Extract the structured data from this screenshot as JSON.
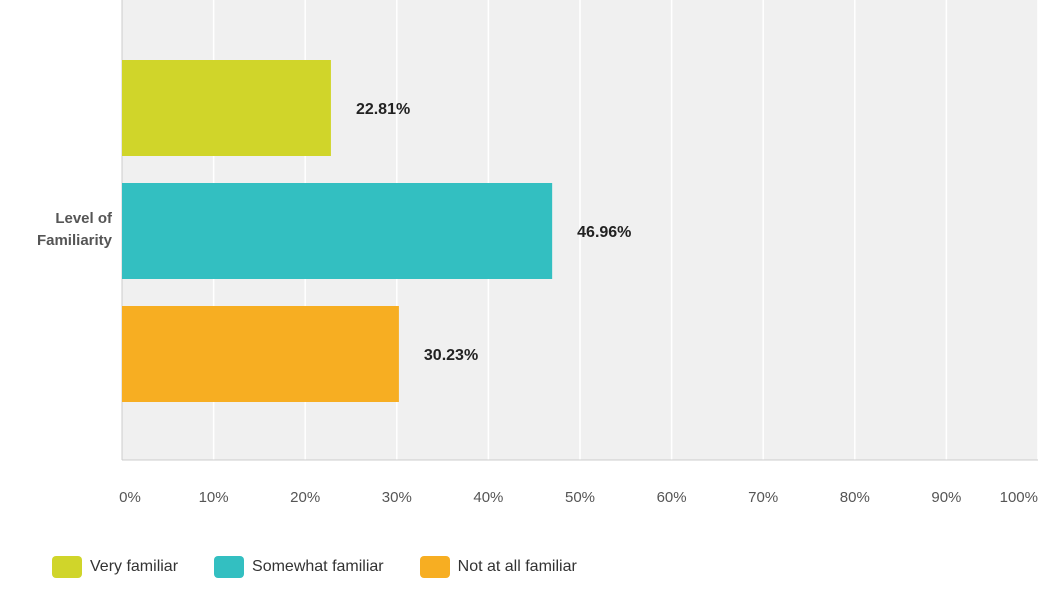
{
  "chart_data": {
    "type": "bar",
    "orientation": "horizontal",
    "categories": [
      "Level of Familiarity"
    ],
    "series": [
      {
        "name": "Very familiar",
        "color": "#d0d52a",
        "values": [
          22.81
        ],
        "value_labels": [
          "22.81%"
        ]
      },
      {
        "name": "Somewhat familiar",
        "color": "#33bfc1",
        "values": [
          46.96
        ],
        "value_labels": [
          "46.96%"
        ]
      },
      {
        "name": "Not at all familiar",
        "color": "#f7ae22",
        "values": [
          30.23
        ],
        "value_labels": [
          "30.23%"
        ]
      }
    ],
    "xlim": [
      0,
      100
    ],
    "xticks": [
      {
        "value": 0,
        "label": "0%"
      },
      {
        "value": 10,
        "label": "10%"
      },
      {
        "value": 20,
        "label": "20%"
      },
      {
        "value": 30,
        "label": "30%"
      },
      {
        "value": 40,
        "label": "40%"
      },
      {
        "value": 50,
        "label": "50%"
      },
      {
        "value": 60,
        "label": "60%"
      },
      {
        "value": 70,
        "label": "70%"
      },
      {
        "value": 80,
        "label": "80%"
      },
      {
        "value": 90,
        "label": "90%"
      },
      {
        "value": 100,
        "label": "100%"
      }
    ],
    "grid": true,
    "legend": "bottom"
  }
}
